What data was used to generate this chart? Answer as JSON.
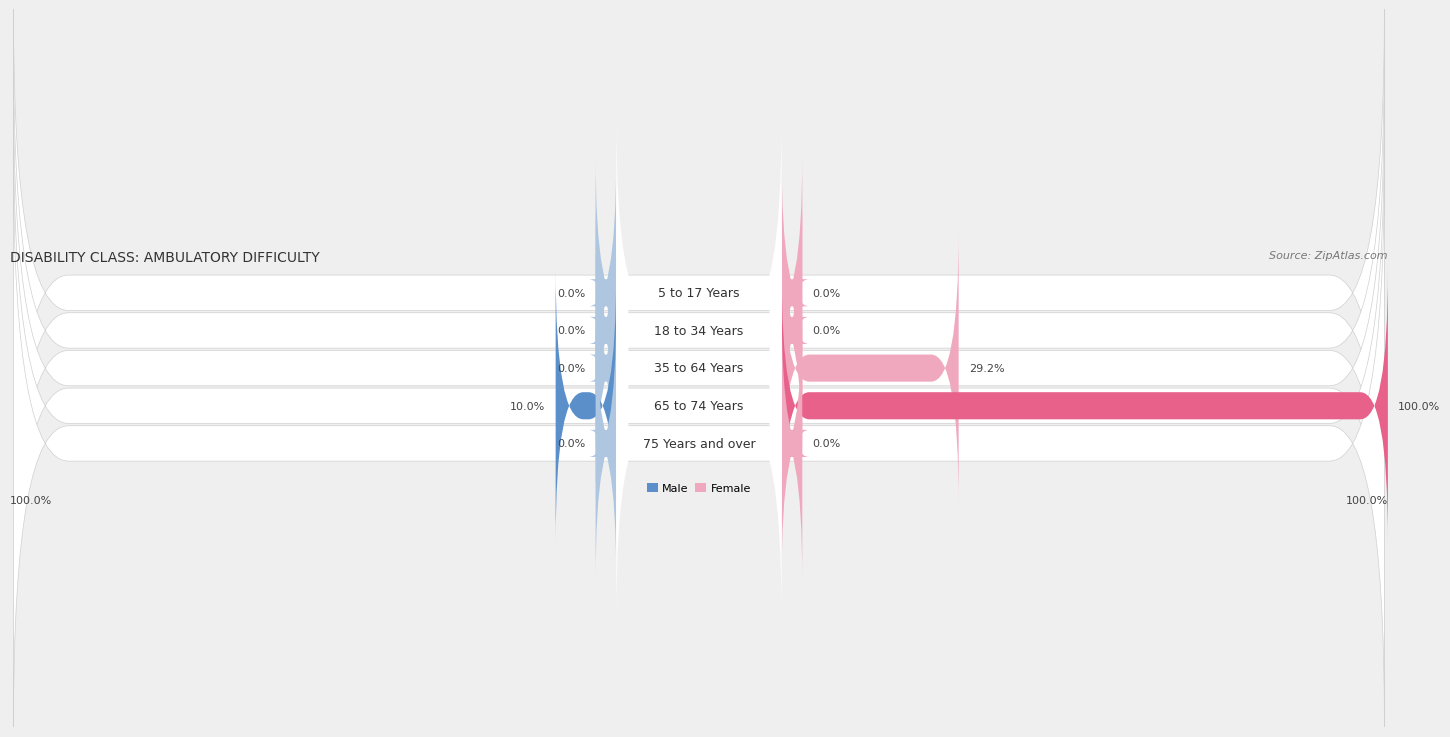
{
  "title": "DISABILITY CLASS: AMBULATORY DIFFICULTY",
  "source": "Source: ZipAtlas.com",
  "categories": [
    "5 to 17 Years",
    "18 to 34 Years",
    "35 to 64 Years",
    "65 to 74 Years",
    "75 Years and over"
  ],
  "male_values": [
    0.0,
    0.0,
    0.0,
    10.0,
    0.0
  ],
  "female_values": [
    0.0,
    0.0,
    29.2,
    100.0,
    0.0
  ],
  "max_value": 100.0,
  "male_color_light": "#aec6e0",
  "male_color_dark": "#5b8fc9",
  "female_color_light": "#f0a8be",
  "female_color_dark": "#e8618a",
  "row_bg_color": "#ffffff",
  "page_bg_color": "#efefef",
  "row_gap_color": "#e0e0e0",
  "title_fontsize": 10,
  "label_fontsize": 9,
  "annotation_fontsize": 8,
  "source_fontsize": 8,
  "axis_label_left": "100.0%",
  "axis_label_right": "100.0%"
}
